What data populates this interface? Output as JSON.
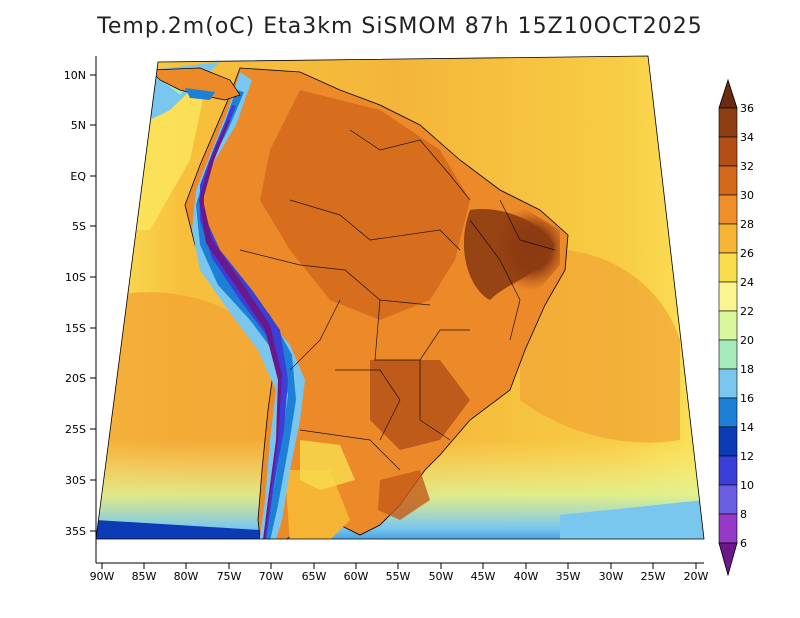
{
  "title": "Temp.2m(oC) Eta3km SiSMOM 87h 15Z10OCT2025",
  "map": {
    "lat_ticks": [
      "10N",
      "5N",
      "EQ",
      "5S",
      "10S",
      "15S",
      "20S",
      "25S",
      "30S",
      "35S"
    ],
    "lon_ticks": [
      "90W",
      "85W",
      "80W",
      "75W",
      "70W",
      "65W",
      "60W",
      "55W",
      "50W",
      "45W",
      "40W",
      "35W",
      "30W",
      "25W",
      "20W"
    ]
  },
  "colorbar": {
    "labels": [
      "36",
      "34",
      "32",
      "30",
      "28",
      "26",
      "24",
      "22",
      "20",
      "18",
      "16",
      "14",
      "12",
      "10",
      "8",
      "6"
    ],
    "colors": [
      "#6b2a0f",
      "#8e3c12",
      "#b34f16",
      "#d4691c",
      "#ee8f2a",
      "#f6b435",
      "#f9dd4d",
      "#fbf590",
      "#d9f79c",
      "#a6ebb9",
      "#79c6ef",
      "#1e7fd6",
      "#0b3bb5",
      "#3a3fd8",
      "#6a5fe3",
      "#9638c8",
      "#6b198a"
    ]
  }
}
